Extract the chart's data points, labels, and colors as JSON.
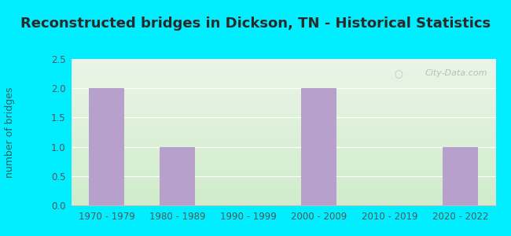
{
  "title": "Reconstructed bridges in Dickson, TN - Historical Statistics",
  "categories": [
    "1970 - 1979",
    "1980 - 1989",
    "1990 - 1999",
    "2000 - 2009",
    "2010 - 2019",
    "2020 - 2022"
  ],
  "values": [
    2,
    1,
    0,
    2,
    0,
    1
  ],
  "bar_color": "#b8a0cc",
  "ylabel": "number of bridges",
  "ylim": [
    0,
    2.5
  ],
  "yticks": [
    0,
    0.5,
    1,
    1.5,
    2,
    2.5
  ],
  "title_fontsize": 13,
  "axis_label_fontsize": 9,
  "tick_fontsize": 8.5,
  "background_outer": "#00eeff",
  "background_inner_top": "#eaf5e8",
  "background_inner_bottom": "#d0ecca",
  "grid_color": "#ffffff",
  "title_color": "#2a2a2a",
  "ylabel_color": "#2a6060",
  "tick_color": "#555555",
  "watermark": "City-Data.com"
}
